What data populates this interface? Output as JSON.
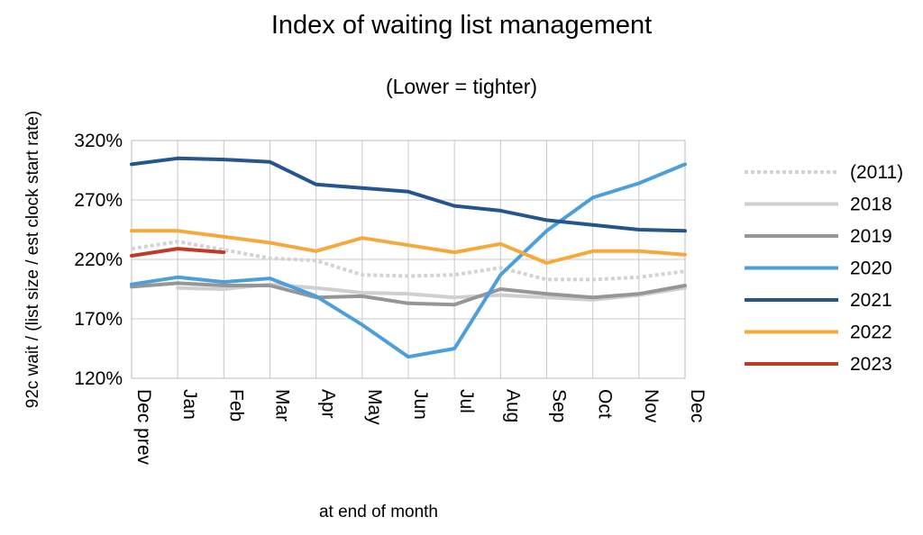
{
  "chart_data": {
    "type": "line",
    "title": "Index of waiting list management",
    "subtitle": "(Lower = tighter)",
    "ylabel": "92c wait / (list size / est clock start rate)",
    "xlabel": "at end of month",
    "categories": [
      "Dec prev",
      "Jan",
      "Feb",
      "Mar",
      "Apr",
      "May",
      "Jun",
      "Jul",
      "Aug",
      "Sep",
      "Oct",
      "Nov",
      "Dec"
    ],
    "y_ticks": [
      "120%",
      "170%",
      "220%",
      "270%",
      "320%"
    ],
    "ylim": [
      120,
      320
    ],
    "y_unit": "%",
    "grid": "vertical and horizontal",
    "legend_position": "right",
    "series": [
      {
        "name": "(2011)",
        "color": "#d3d3d3",
        "dashed": true,
        "values": [
          229,
          235,
          228,
          221,
          219,
          207,
          206,
          207,
          213,
          203,
          203,
          205,
          210
        ]
      },
      {
        "name": "2018",
        "color": "#cfcfcf",
        "dashed": false,
        "values": [
          null,
          196,
          195,
          199,
          196,
          192,
          191,
          188,
          190,
          188,
          186,
          190,
          196
        ]
      },
      {
        "name": "2019",
        "color": "#969696",
        "dashed": false,
        "values": [
          197,
          200,
          198,
          198,
          188,
          189,
          183,
          182,
          195,
          191,
          188,
          191,
          198
        ]
      },
      {
        "name": "2020",
        "color": "#4d9fdc",
        "dashed": false,
        "values": [
          199,
          205,
          201,
          204,
          189,
          165,
          138,
          145,
          207,
          244,
          272,
          284,
          300
        ]
      },
      {
        "name": "2021",
        "color": "#25558f",
        "dashed": false,
        "values": [
          300,
          305,
          304,
          302,
          283,
          280,
          277,
          265,
          261,
          253,
          249,
          245,
          244
        ]
      },
      {
        "name": "2022",
        "color": "#f6a93b",
        "dashed": false,
        "values": [
          244,
          244,
          239,
          234,
          227,
          238,
          232,
          226,
          233,
          217,
          227,
          227,
          224
        ]
      },
      {
        "name": "2023",
        "color": "#c0392b",
        "dashed": false,
        "values": [
          223,
          229,
          226,
          null,
          null,
          null,
          null,
          null,
          null,
          null,
          null,
          null,
          null
        ]
      }
    ]
  }
}
